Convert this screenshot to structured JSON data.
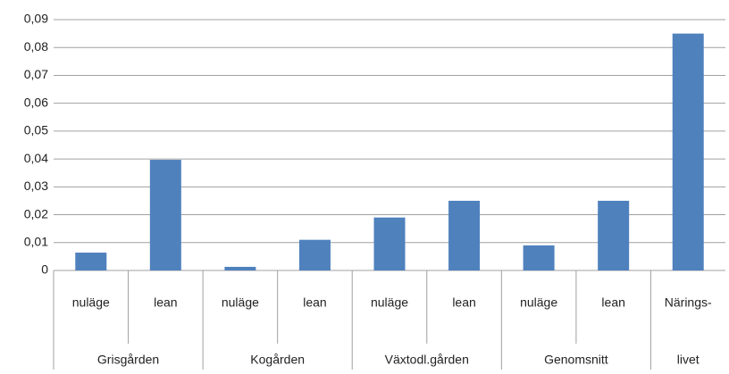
{
  "chart_data": {
    "type": "bar",
    "color": "#4f81bd",
    "grid": true,
    "ylim": [
      0,
      0.09
    ],
    "yticks": [
      0,
      {
        "value": 0.01,
        "label": "0,01"
      },
      {
        "value": 0.02,
        "label": "0,02"
      },
      {
        "value": 0.03,
        "label": "0,03"
      },
      {
        "value": 0.04,
        "label": "0,04"
      },
      {
        "value": 0.05,
        "label": "0,05"
      },
      {
        "value": 0.06,
        "label": "0,06"
      },
      {
        "value": 0.07,
        "label": "0,07"
      },
      {
        "value": 0.08,
        "label": "0,08"
      },
      {
        "value": 0.09,
        "label": "0,09"
      }
    ],
    "groups": [
      {
        "label": "Grisgården",
        "categories": [
          "nuläge",
          "lean"
        ],
        "values": [
          0.0064,
          0.0397
        ]
      },
      {
        "label": "Kogården",
        "categories": [
          "nuläge",
          "lean"
        ],
        "values": [
          0.0013,
          0.011
        ]
      },
      {
        "label": "Växtodl.gården",
        "categories": [
          "nuläge",
          "lean"
        ],
        "values": [
          0.019,
          0.025
        ]
      },
      {
        "label": "Genomsnitt",
        "categories": [
          "nuläge",
          "lean"
        ],
        "values": [
          0.009,
          0.025
        ]
      },
      {
        "label": "livet",
        "categories": [
          "Närings-"
        ],
        "values": [
          0.085
        ]
      }
    ]
  }
}
